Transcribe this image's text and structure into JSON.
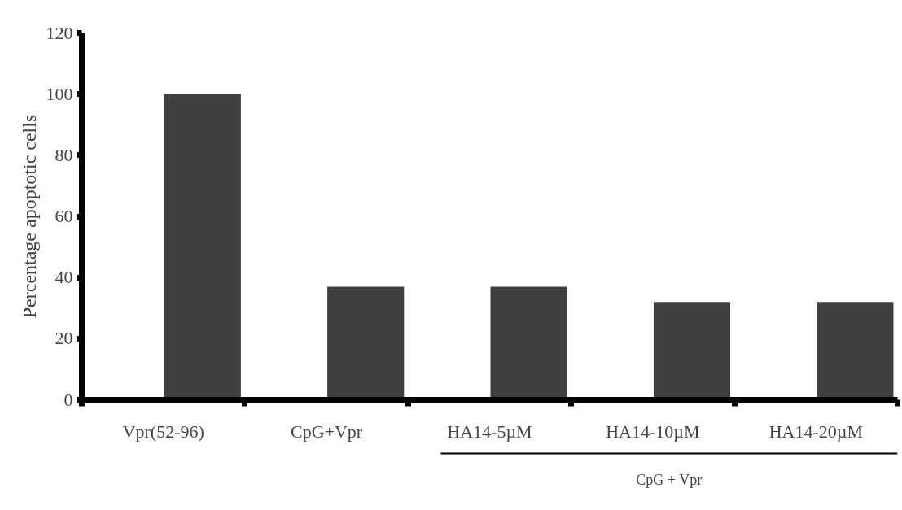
{
  "chart_data": {
    "type": "bar",
    "ylabel": "Percentage apoptotic cells",
    "categories": [
      "Vpr(52-96)",
      "CpG+Vpr",
      "HA14-5µM",
      "HA14-10µM",
      "HA14-20µM"
    ],
    "values": [
      100,
      37,
      37,
      32,
      32
    ],
    "color": "#404040",
    "ylim": [
      0,
      120
    ],
    "yticks": [
      0,
      20,
      40,
      60,
      80,
      100,
      120
    ],
    "grid": false,
    "annotations": [
      "CpG + Vpr"
    ]
  }
}
